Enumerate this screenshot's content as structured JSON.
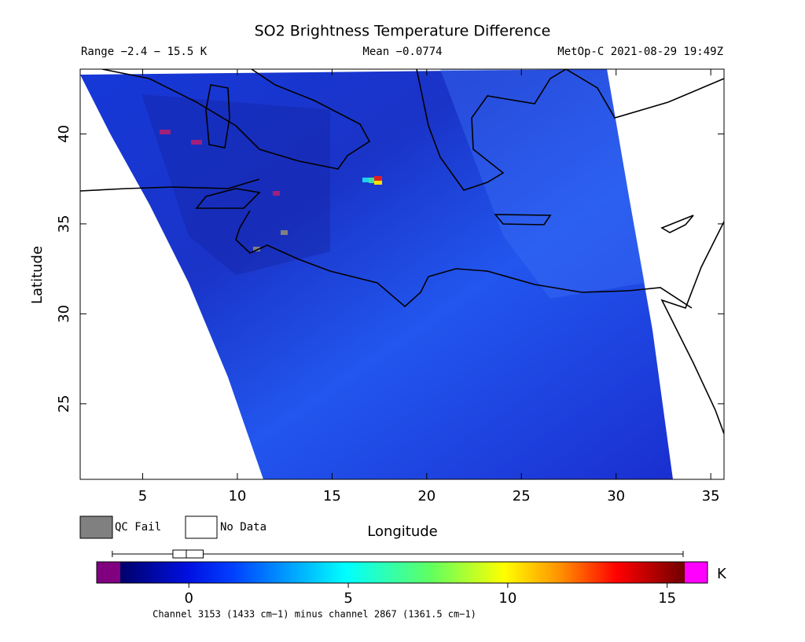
{
  "header": {
    "title": "SO2 Brightness Temperature Difference",
    "range": "Range −2.4 − 15.5 K",
    "mean": "Mean −0.0774",
    "satellite": "MetOp-C 2021-08-29 19:49Z"
  },
  "chart_data": {
    "type": "map",
    "xlabel": "Longitude",
    "ylabel": "Latitude",
    "xlim": [
      1.7,
      35.7
    ],
    "ylim": [
      20.8,
      43.6
    ],
    "xticks": [
      5,
      10,
      15,
      20,
      25,
      30,
      35
    ],
    "yticks": [
      25,
      30,
      35,
      40
    ]
  },
  "legend": {
    "qc_fail": "QC Fail",
    "no_data": "No Data"
  },
  "colorbar": {
    "unit": "K",
    "clim": [
      -2.15,
      15.55
    ],
    "ticks": [
      0,
      5,
      10,
      15
    ],
    "boxplot": {
      "whislo": -2.4,
      "q1": -0.5,
      "med": -0.08,
      "q3": 0.45,
      "whishi": 15.5
    },
    "caption": "Channel 3153 (1433 cm−1) minus channel 2867 (1361.5 cm−1)"
  }
}
